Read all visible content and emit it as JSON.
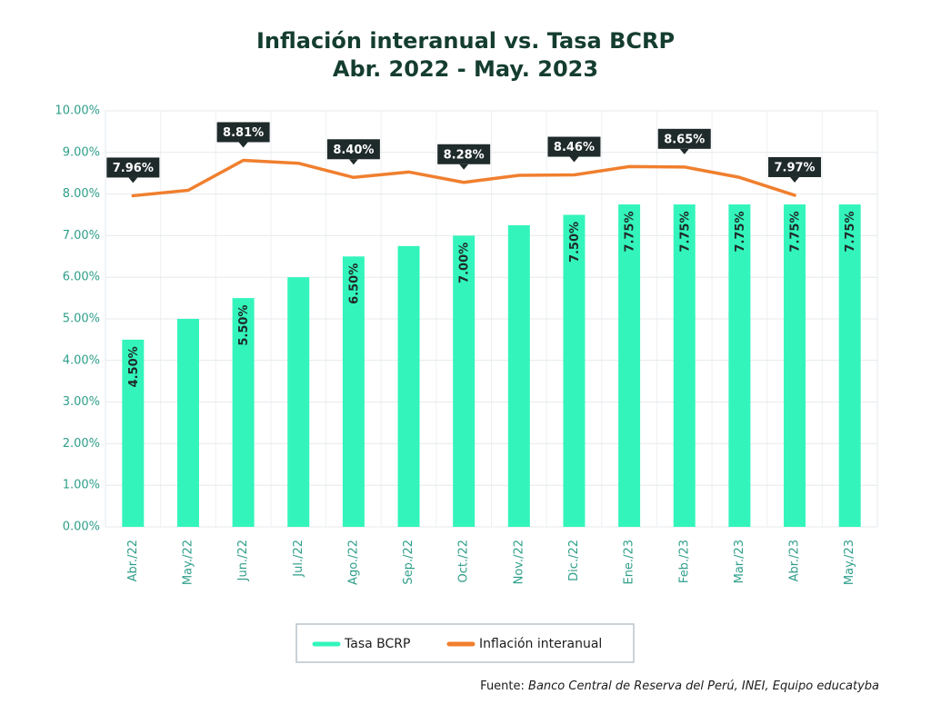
{
  "chart_data": {
    "type": "bar",
    "title": "Inflación interanual vs. Tasa BCRP",
    "subtitle": "Abr. 2022 - May. 2023",
    "categories": [
      "Abr./22",
      "May./22",
      "Jun./22",
      "Jul./22",
      "Ago./22",
      "Sep./22",
      "Oct./22",
      "Nov./22",
      "Dic./22",
      "Ene./23",
      "Feb./23",
      "Mar./23",
      "Abr./23",
      "May./23"
    ],
    "series": [
      {
        "name": "Tasa BCRP",
        "type": "bar",
        "color": "#33f5bb",
        "values": [
          4.5,
          5.0,
          5.5,
          6.0,
          6.5,
          6.75,
          7.0,
          7.25,
          7.5,
          7.75,
          7.75,
          7.75,
          7.75,
          7.75
        ],
        "value_labels": [
          "4.50%",
          null,
          "5.50%",
          null,
          "6.50%",
          null,
          "7.00%",
          null,
          "7.50%",
          "7.75%",
          "7.75%",
          "7.75%",
          "7.75%",
          "7.75%"
        ]
      },
      {
        "name": "Inflación interanual",
        "type": "line",
        "color": "#f07f2e",
        "values": [
          7.96,
          8.09,
          8.81,
          8.74,
          8.4,
          8.53,
          8.28,
          8.45,
          8.46,
          8.66,
          8.65,
          8.4,
          7.97,
          null
        ],
        "value_labels": [
          "7.96%",
          null,
          "8.81%",
          null,
          "8.40%",
          null,
          "8.28%",
          null,
          "8.46%",
          null,
          "8.65%",
          null,
          "7.97%",
          null
        ]
      }
    ],
    "ylim": [
      0,
      10
    ],
    "yticks": [
      {
        "value": 0,
        "label": "0.00%"
      },
      {
        "value": 1,
        "label": "1.00%"
      },
      {
        "value": 2,
        "label": "2.00%"
      },
      {
        "value": 3,
        "label": "3.00%"
      },
      {
        "value": 4,
        "label": "4.00%"
      },
      {
        "value": 5,
        "label": "5.00%"
      },
      {
        "value": 6,
        "label": "6.00%"
      },
      {
        "value": 7,
        "label": "7.00%"
      },
      {
        "value": 8,
        "label": "8.00%"
      },
      {
        "value": 9,
        "label": "9.00%"
      },
      {
        "value": 10,
        "label": "10.00%"
      }
    ],
    "grid": true,
    "legend": "bottom",
    "source_label": "Fuente:",
    "source": "Banco Central de Reserva del Perú, INEI, Equipo educatyba"
  }
}
